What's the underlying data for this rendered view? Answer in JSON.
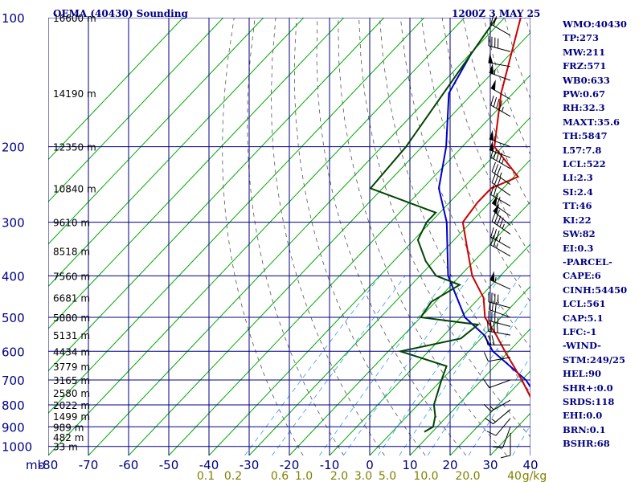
{
  "header": {
    "station": "OEMA (40430) Sounding",
    "time": "1200Z  3 MAY 25"
  },
  "indices": [
    "WMO:40430",
    "TP:273",
    "MW:211",
    "FRZ:571",
    "WB0:633",
    "PW:0.67",
    "RH:32.3",
    "MAXT:35.6",
    "TH:5847",
    "L57:7.8",
    "LCL:522",
    "LI:2.3",
    "SI:2.4",
    "TT:46",
    "KI:22",
    "SW:82",
    "EI:0.3",
    "-PARCEL-",
    "CAPE:6",
    "CINH:54450",
    "LCL:561",
    "CAP:5.1",
    "LFC:-1",
    "-WIND-",
    "STM:249/25",
    "HEL:90",
    "SHR+:0.0",
    "SRDS:118",
    "EHI:0.0",
    "BRN:0.1",
    "BSHR:68"
  ],
  "colors": {
    "axis": "#000080",
    "isotherm": "#00aa00",
    "temperature": "#cc0000",
    "dewpoint": "#004400",
    "parcel": "#0000cc",
    "mixing_ratio": "#3399ff",
    "dry_adiabat": "#555555",
    "mixing_label": "#808000"
  },
  "chart_data": {
    "type": "skew-t",
    "x_unit_label": "mb",
    "temperature_ticks": [
      "-80",
      "-70",
      "-60",
      "-50",
      "-40",
      "-30",
      "-20",
      "-10",
      "0",
      "10",
      "20",
      "30",
      "40"
    ],
    "pressure_levels": [
      100,
      200,
      300,
      400,
      500,
      600,
      700,
      800,
      900,
      1000
    ],
    "pressure_labels": [
      "100",
      "200",
      "300",
      "400",
      "500",
      "600",
      "700",
      "800",
      "900",
      "1000"
    ],
    "height_labels": [
      {
        "p": 100,
        "label": "16600 m"
      },
      {
        "p": 150,
        "label": "14190 m"
      },
      {
        "p": 200,
        "label": "12350 m"
      },
      {
        "p": 250,
        "label": "10840 m"
      },
      {
        "p": 300,
        "label": "9610 m"
      },
      {
        "p": 350,
        "label": "8518 m"
      },
      {
        "p": 400,
        "label": "7560 m"
      },
      {
        "p": 450,
        "label": "6681 m"
      },
      {
        "p": 500,
        "label": "5880 m"
      },
      {
        "p": 550,
        "label": "5131 m"
      },
      {
        "p": 600,
        "label": "4434 m"
      },
      {
        "p": 650,
        "label": "3779 m"
      },
      {
        "p": 700,
        "label": "3165 m"
      },
      {
        "p": 750,
        "label": "2580 m"
      },
      {
        "p": 800,
        "label": "2022 m"
      },
      {
        "p": 850,
        "label": "1499 m"
      },
      {
        "p": 900,
        "label": "989 m"
      },
      {
        "p": 950,
        "label": "482 m"
      },
      {
        "p": 1000,
        "label": "33 m"
      }
    ],
    "mixing_ratio_labels": [
      "0.1",
      "0.2",
      "0.6",
      "1.0",
      "2.0",
      "3.0",
      "5.0",
      "10.0",
      "20.0",
      "40",
      "g/kg"
    ],
    "temperature_profile": [
      [
        925,
        36
      ],
      [
        900,
        31
      ],
      [
        850,
        25
      ],
      [
        800,
        19
      ],
      [
        700,
        10
      ],
      [
        600,
        -1
      ],
      [
        550,
        -7
      ],
      [
        500,
        -14
      ],
      [
        450,
        -19
      ],
      [
        400,
        -27
      ],
      [
        350,
        -34
      ],
      [
        300,
        -42
      ],
      [
        270,
        -43
      ],
      [
        250,
        -43
      ],
      [
        235,
        -39
      ],
      [
        200,
        -52
      ],
      [
        150,
        -63
      ],
      [
        100,
        -76
      ]
    ],
    "dewpoint_profile": [
      [
        925,
        -2
      ],
      [
        900,
        -1
      ],
      [
        850,
        -3
      ],
      [
        800,
        -6
      ],
      [
        700,
        -10
      ],
      [
        650,
        -12
      ],
      [
        600,
        -27
      ],
      [
        560,
        -15
      ],
      [
        520,
        -14
      ],
      [
        500,
        -30
      ],
      [
        460,
        -31
      ],
      [
        420,
        -28
      ],
      [
        400,
        -36
      ],
      [
        370,
        -42
      ],
      [
        330,
        -49
      ],
      [
        300,
        -51
      ],
      [
        285,
        -51
      ],
      [
        250,
        -73
      ],
      [
        200,
        -74
      ],
      [
        100,
        -82
      ]
    ],
    "parcel_profile": [
      [
        925,
        36
      ],
      [
        900,
        32
      ],
      [
        850,
        26
      ],
      [
        800,
        21
      ],
      [
        700,
        11
      ],
      [
        600,
        -4
      ],
      [
        550,
        -10
      ],
      [
        500,
        -19
      ],
      [
        400,
        -33
      ],
      [
        300,
        -46
      ],
      [
        250,
        -56
      ],
      [
        200,
        -64
      ],
      [
        150,
        -76
      ],
      [
        120,
        -80
      ]
    ],
    "wind_barbs": [
      {
        "p": 110,
        "dir": 300,
        "kt": 20
      },
      {
        "p": 120,
        "dir": 285,
        "kt": 40
      },
      {
        "p": 130,
        "dir": 280,
        "kt": 50
      },
      {
        "p": 140,
        "dir": 290,
        "kt": 55
      },
      {
        "p": 155,
        "dir": 300,
        "kt": 50
      },
      {
        "p": 170,
        "dir": 300,
        "kt": 45
      },
      {
        "p": 200,
        "dir": 290,
        "kt": 55
      },
      {
        "p": 212,
        "dir": 290,
        "kt": 50
      },
      {
        "p": 225,
        "dir": 300,
        "kt": 45
      },
      {
        "p": 245,
        "dir": 305,
        "kt": 35
      },
      {
        "p": 260,
        "dir": 305,
        "kt": 30
      },
      {
        "p": 275,
        "dir": 300,
        "kt": 25
      },
      {
        "p": 290,
        "dir": 305,
        "kt": 60
      },
      {
        "p": 305,
        "dir": 310,
        "kt": 55
      },
      {
        "p": 320,
        "dir": 305,
        "kt": 45
      },
      {
        "p": 345,
        "dir": 300,
        "kt": 35
      },
      {
        "p": 360,
        "dir": 300,
        "kt": 25
      },
      {
        "p": 430,
        "dir": 295,
        "kt": 55
      },
      {
        "p": 475,
        "dir": 285,
        "kt": 40
      },
      {
        "p": 500,
        "dir": 290,
        "kt": 30
      },
      {
        "p": 525,
        "dir": 285,
        "kt": 35
      },
      {
        "p": 550,
        "dir": 280,
        "kt": 40
      },
      {
        "p": 580,
        "dir": 270,
        "kt": 30
      },
      {
        "p": 620,
        "dir": 260,
        "kt": 10
      },
      {
        "p": 700,
        "dir": 250,
        "kt": 10
      },
      {
        "p": 780,
        "dir": 240,
        "kt": 15
      },
      {
        "p": 820,
        "dir": 230,
        "kt": 15
      },
      {
        "p": 860,
        "dir": 220,
        "kt": 10
      },
      {
        "p": 900,
        "dir": 200,
        "kt": 10
      },
      {
        "p": 930,
        "dir": 180,
        "kt": 10
      }
    ],
    "ylim": [
      100,
      1050
    ],
    "log_pressure_axis": true
  }
}
